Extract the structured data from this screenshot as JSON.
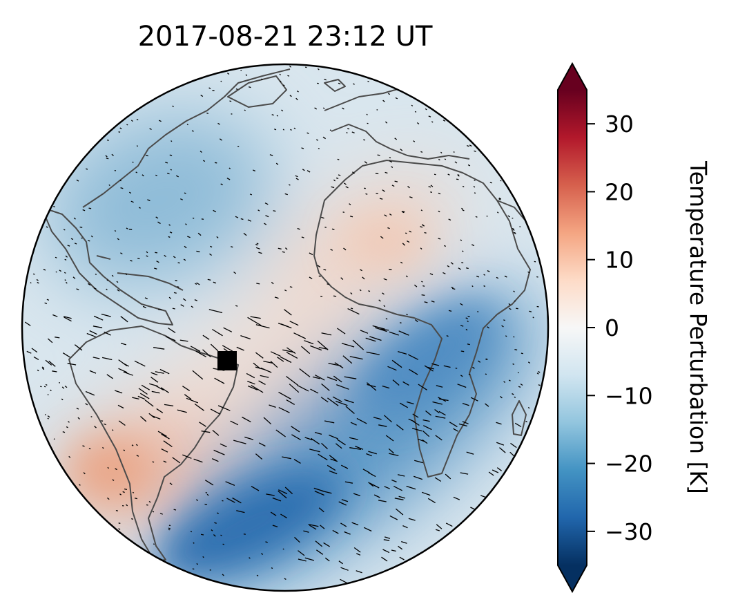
{
  "title": "2017-08-21  23:12 UT",
  "colorbar": {
    "label": "Temperature Perturbation [K]",
    "ticks": [
      "30",
      "20",
      "10",
      "0",
      "−10",
      "−20",
      "−30"
    ],
    "tick_values": [
      30,
      20,
      10,
      0,
      -10,
      -20,
      -30
    ],
    "range": [
      -35,
      35
    ],
    "extend": "both",
    "colormap": "RdBu_r",
    "colors": [
      "#053061",
      "#2166ac",
      "#4393c3",
      "#92c5de",
      "#d1e5f0",
      "#f7f7f7",
      "#fddbc7",
      "#f4a582",
      "#d6604d",
      "#b2182b",
      "#67001f"
    ]
  },
  "map": {
    "projection": "orthographic",
    "marker": "black-square",
    "coastline_color": "#4a4a4a"
  }
}
